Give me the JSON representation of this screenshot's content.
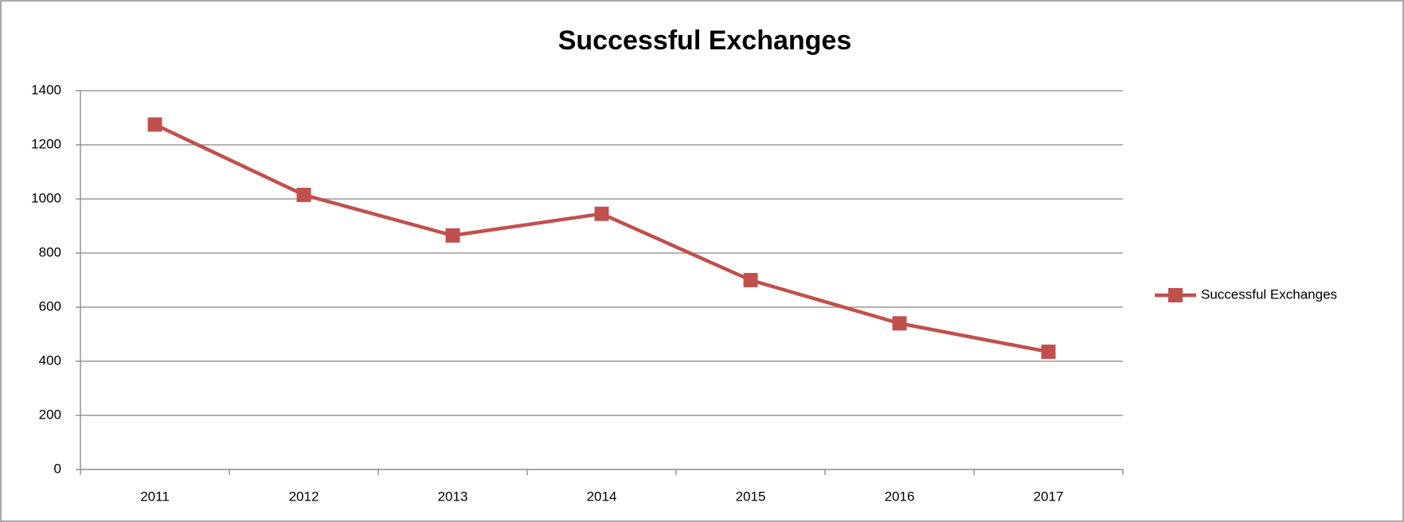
{
  "chart_data": {
    "type": "line",
    "title": "Successful Exchanges",
    "categories": [
      "2011",
      "2012",
      "2013",
      "2014",
      "2015",
      "2016",
      "2017"
    ],
    "series": [
      {
        "name": "Successful Exchanges",
        "color": "#c0504d",
        "values": [
          1275,
          1015,
          865,
          945,
          700,
          540,
          435
        ]
      }
    ],
    "ylim": [
      0,
      1400
    ],
    "yticks": [
      0,
      200,
      400,
      600,
      800,
      1000,
      1200,
      1400
    ],
    "grid": true,
    "legend": "right"
  }
}
